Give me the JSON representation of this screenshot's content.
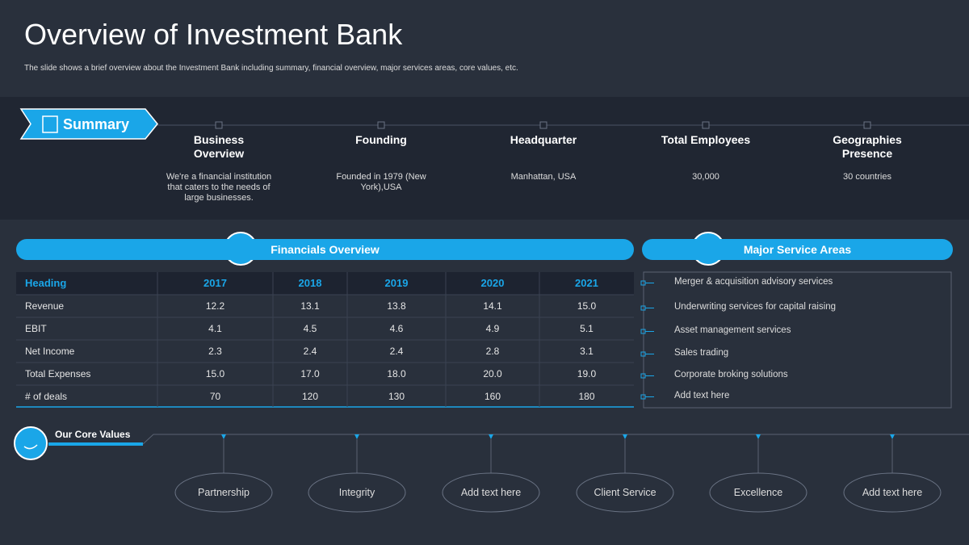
{
  "header": {
    "title": "Overview of Investment Bank",
    "subtitle": "The slide shows a brief overview about the Investment Bank including summary, financial overview, major services areas, core values, etc."
  },
  "summary": {
    "label": "Summary",
    "items": [
      {
        "heading": "Business Overview",
        "text": "We're a financial institution that caters to the needs of large businesses."
      },
      {
        "heading": "Founding",
        "text": "Founded in 1979 (New York),USA"
      },
      {
        "heading": "Headquarter",
        "text": "Manhattan, USA"
      },
      {
        "heading": "Total Employees",
        "text": "30,000"
      },
      {
        "heading": "Geographies Presence",
        "text": "30 countries"
      }
    ]
  },
  "financials": {
    "title": "Financials Overview",
    "columns": [
      "Heading",
      "2017",
      "2018",
      "2019",
      "2020",
      "2021"
    ],
    "rows": [
      [
        "Revenue",
        "12.2",
        "13.1",
        "13.8",
        "14.1",
        "15.0"
      ],
      [
        "EBIT",
        "4.1",
        "4.5",
        "4.6",
        "4.9",
        "5.1"
      ],
      [
        "Net Income",
        "2.3",
        "2.4",
        "2.4",
        "2.8",
        "3.1"
      ],
      [
        "Total Expenses",
        "15.0",
        "17.0",
        "18.0",
        "20.0",
        "19.0"
      ],
      [
        "# of deals",
        "70",
        "120",
        "130",
        "160",
        "180"
      ]
    ]
  },
  "services": {
    "title": "Major Service Areas",
    "items": [
      "Merger & acquisition advisory services",
      "Underwriting services for capital raising",
      "Asset management services",
      "Sales trading",
      "Corporate broking solutions",
      "Add text here"
    ]
  },
  "core_values": {
    "title": "Our Core Values",
    "items": [
      "Partnership",
      "Integrity",
      "Add text here",
      "Client Service",
      "Excellence",
      "Add text here"
    ]
  }
}
